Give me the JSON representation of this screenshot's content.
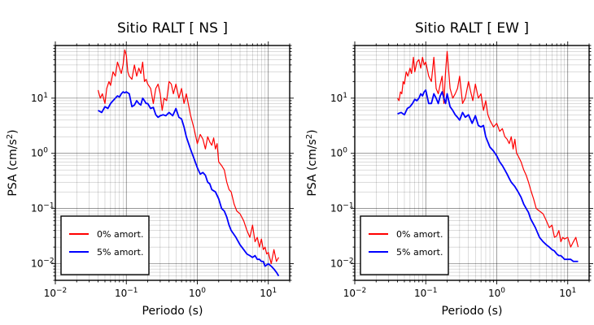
{
  "chart_data": [
    {
      "type": "line",
      "title": "Sitio RALT [ NS ]",
      "xlabel": "Periodo (s)",
      "ylabel_base": "PSA (cm/s",
      "ylabel_exp": "2",
      "ylabel_close": ")",
      "xscale": "log",
      "yscale": "log",
      "xlim": [
        0.01,
        20
      ],
      "ylim": [
        0.005,
        90
      ],
      "grid": true,
      "legend_position": "bottom-left",
      "x_ticks": [
        {
          "base": "10",
          "exp": "−2"
        },
        {
          "base": "10",
          "exp": "−1"
        },
        {
          "base": "10",
          "exp": "0"
        },
        {
          "base": "10",
          "exp": "1"
        }
      ],
      "y_ticks": [
        {
          "base": "10",
          "exp": "−2"
        },
        {
          "base": "10",
          "exp": "−1"
        },
        {
          "base": "10",
          "exp": "0"
        },
        {
          "base": "10",
          "exp": "1"
        }
      ],
      "series": [
        {
          "name": "0% amort.",
          "color": "#ff0000",
          "x": [
            0.04,
            0.043,
            0.046,
            0.05,
            0.053,
            0.057,
            0.06,
            0.065,
            0.07,
            0.075,
            0.08,
            0.085,
            0.09,
            0.095,
            0.1,
            0.105,
            0.11,
            0.12,
            0.13,
            0.14,
            0.15,
            0.16,
            0.17,
            0.18,
            0.19,
            0.2,
            0.22,
            0.24,
            0.26,
            0.28,
            0.3,
            0.32,
            0.34,
            0.37,
            0.4,
            0.43,
            0.46,
            0.5,
            0.55,
            0.6,
            0.65,
            0.7,
            0.8,
            0.9,
            1.0,
            1.1,
            1.2,
            1.3,
            1.4,
            1.5,
            1.6,
            1.7,
            1.8,
            1.9,
            2.0,
            2.2,
            2.4,
            2.6,
            2.8,
            3.0,
            3.3,
            3.6,
            4.0,
            4.5,
            5.0,
            5.5,
            6.0,
            6.5,
            7.0,
            7.5,
            8.0,
            8.5,
            9.0,
            9.5,
            10.0,
            11.0,
            12.0,
            13.0,
            14.0
          ],
          "y": [
            14,
            10,
            12,
            8,
            15,
            20,
            17,
            30,
            25,
            45,
            35,
            28,
            40,
            75,
            60,
            30,
            25,
            22,
            40,
            25,
            35,
            28,
            45,
            20,
            22,
            18,
            15,
            8,
            15,
            18,
            12,
            6,
            10,
            9,
            20,
            18,
            12,
            18,
            10,
            15,
            8,
            12,
            5,
            2.8,
            1.5,
            2.2,
            1.8,
            1.2,
            2.0,
            1.6,
            1.4,
            1.9,
            1.2,
            1.5,
            0.7,
            0.6,
            0.5,
            0.3,
            0.22,
            0.2,
            0.12,
            0.09,
            0.08,
            0.06,
            0.04,
            0.03,
            0.05,
            0.025,
            0.03,
            0.02,
            0.028,
            0.018,
            0.02,
            0.015,
            0.016,
            0.01,
            0.018,
            0.011,
            0.013
          ]
        },
        {
          "name": "5% amort.",
          "color": "#0000ff",
          "x": [
            0.04,
            0.045,
            0.05,
            0.055,
            0.06,
            0.065,
            0.07,
            0.075,
            0.08,
            0.085,
            0.09,
            0.095,
            0.1,
            0.11,
            0.12,
            0.13,
            0.14,
            0.15,
            0.16,
            0.17,
            0.18,
            0.19,
            0.2,
            0.22,
            0.24,
            0.26,
            0.28,
            0.3,
            0.33,
            0.36,
            0.4,
            0.45,
            0.5,
            0.55,
            0.6,
            0.65,
            0.7,
            0.8,
            0.9,
            1.0,
            1.1,
            1.2,
            1.3,
            1.4,
            1.5,
            1.6,
            1.8,
            2.0,
            2.2,
            2.4,
            2.6,
            2.8,
            3.0,
            3.5,
            4.0,
            4.5,
            5.0,
            5.5,
            6.0,
            6.5,
            7.0,
            7.5,
            8.0,
            8.5,
            9.0,
            10.0,
            11.0,
            12.0,
            13.0,
            14.0
          ],
          "y": [
            6,
            5.5,
            7,
            6.5,
            8,
            9,
            10,
            11,
            10.5,
            12,
            13,
            12.5,
            13,
            12,
            7,
            7.5,
            9,
            8,
            7.5,
            10,
            9,
            8,
            8,
            6.5,
            6.8,
            5,
            4.5,
            4.8,
            5,
            4.8,
            5.5,
            4.8,
            6.5,
            4.5,
            4.2,
            3,
            2,
            1.2,
            0.8,
            0.55,
            0.42,
            0.45,
            0.4,
            0.3,
            0.28,
            0.22,
            0.2,
            0.15,
            0.1,
            0.09,
            0.07,
            0.05,
            0.04,
            0.03,
            0.022,
            0.018,
            0.015,
            0.014,
            0.013,
            0.014,
            0.012,
            0.012,
            0.011,
            0.011,
            0.009,
            0.01,
            0.009,
            0.008,
            0.007,
            0.006
          ]
        }
      ]
    },
    {
      "type": "line",
      "title": "Sitio RALT [ EW ]",
      "xlabel": "Periodo (s)",
      "ylabel_base": "PSA (cm/s",
      "ylabel_exp": "2",
      "ylabel_close": ")",
      "xscale": "log",
      "yscale": "log",
      "xlim": [
        0.01,
        20
      ],
      "ylim": [
        0.005,
        90
      ],
      "grid": true,
      "legend_position": "bottom-left",
      "x_ticks": [
        {
          "base": "10",
          "exp": "−2"
        },
        {
          "base": "10",
          "exp": "−1"
        },
        {
          "base": "10",
          "exp": "0"
        },
        {
          "base": "10",
          "exp": "1"
        }
      ],
      "y_ticks": [
        {
          "base": "10",
          "exp": "−2"
        },
        {
          "base": "10",
          "exp": "−1"
        },
        {
          "base": "10",
          "exp": "0"
        },
        {
          "base": "10",
          "exp": "1"
        }
      ],
      "series": [
        {
          "name": "0% amort.",
          "color": "#ff0000",
          "x": [
            0.04,
            0.042,
            0.044,
            0.046,
            0.048,
            0.05,
            0.053,
            0.056,
            0.06,
            0.063,
            0.067,
            0.07,
            0.075,
            0.08,
            0.085,
            0.09,
            0.095,
            0.1,
            0.11,
            0.12,
            0.13,
            0.14,
            0.15,
            0.16,
            0.17,
            0.18,
            0.19,
            0.2,
            0.22,
            0.24,
            0.26,
            0.28,
            0.3,
            0.33,
            0.36,
            0.4,
            0.43,
            0.46,
            0.5,
            0.55,
            0.6,
            0.65,
            0.7,
            0.75,
            0.8,
            0.9,
            1.0,
            1.1,
            1.2,
            1.3,
            1.4,
            1.5,
            1.6,
            1.7,
            1.8,
            1.9,
            2.0,
            2.2,
            2.4,
            2.6,
            2.8,
            3.0,
            3.3,
            3.6,
            4.0,
            4.5,
            5.0,
            5.5,
            6.0,
            6.5,
            7.0,
            7.5,
            8.0,
            8.5,
            9.0,
            10.0,
            11.0,
            12.0,
            13.0,
            14.0
          ],
          "y": [
            10,
            9,
            13,
            12,
            20,
            18,
            30,
            25,
            35,
            28,
            55,
            30,
            45,
            50,
            35,
            55,
            40,
            45,
            25,
            20,
            55,
            15,
            12,
            18,
            25,
            8,
            30,
            70,
            15,
            10,
            12,
            15,
            25,
            8,
            10,
            20,
            13,
            9,
            18,
            10,
            12,
            6,
            9,
            5,
            4,
            3,
            3.5,
            2.5,
            2.8,
            2,
            1.8,
            1.5,
            2,
            1.2,
            1.8,
            1.0,
            0.9,
            0.7,
            0.5,
            0.4,
            0.3,
            0.22,
            0.15,
            0.1,
            0.09,
            0.08,
            0.06,
            0.045,
            0.05,
            0.03,
            0.032,
            0.04,
            0.025,
            0.03,
            0.028,
            0.03,
            0.02,
            0.025,
            0.03,
            0.02
          ]
        },
        {
          "name": "5% amort.",
          "color": "#0000ff",
          "x": [
            0.04,
            0.045,
            0.05,
            0.055,
            0.06,
            0.065,
            0.07,
            0.075,
            0.08,
            0.085,
            0.09,
            0.095,
            0.1,
            0.11,
            0.12,
            0.13,
            0.14,
            0.15,
            0.16,
            0.17,
            0.18,
            0.19,
            0.2,
            0.22,
            0.24,
            0.26,
            0.28,
            0.3,
            0.33,
            0.36,
            0.4,
            0.45,
            0.5,
            0.55,
            0.6,
            0.65,
            0.7,
            0.8,
            0.9,
            1.0,
            1.1,
            1.2,
            1.3,
            1.4,
            1.5,
            1.6,
            1.8,
            2.0,
            2.2,
            2.4,
            2.6,
            2.8,
            3.0,
            3.5,
            4.0,
            4.5,
            5.0,
            5.5,
            6.0,
            6.5,
            7.0,
            7.5,
            8.0,
            8.5,
            9.0,
            10.0,
            11.0,
            12.0,
            13.0,
            14.0
          ],
          "y": [
            5.2,
            5.5,
            5,
            6.5,
            7,
            8,
            9.5,
            9,
            10,
            12,
            11,
            13,
            14,
            8,
            8,
            12,
            10,
            8,
            11,
            13,
            10,
            8,
            12,
            7,
            6,
            5,
            4.5,
            4,
            5.5,
            4.5,
            5,
            3.5,
            4.8,
            3.2,
            3,
            3.2,
            2,
            1.3,
            1.1,
            0.9,
            0.7,
            0.6,
            0.5,
            0.42,
            0.35,
            0.3,
            0.25,
            0.2,
            0.16,
            0.12,
            0.1,
            0.085,
            0.065,
            0.045,
            0.03,
            0.025,
            0.022,
            0.02,
            0.018,
            0.017,
            0.015,
            0.014,
            0.014,
            0.013,
            0.012,
            0.012,
            0.012,
            0.011,
            0.011,
            0.011
          ]
        }
      ]
    }
  ]
}
